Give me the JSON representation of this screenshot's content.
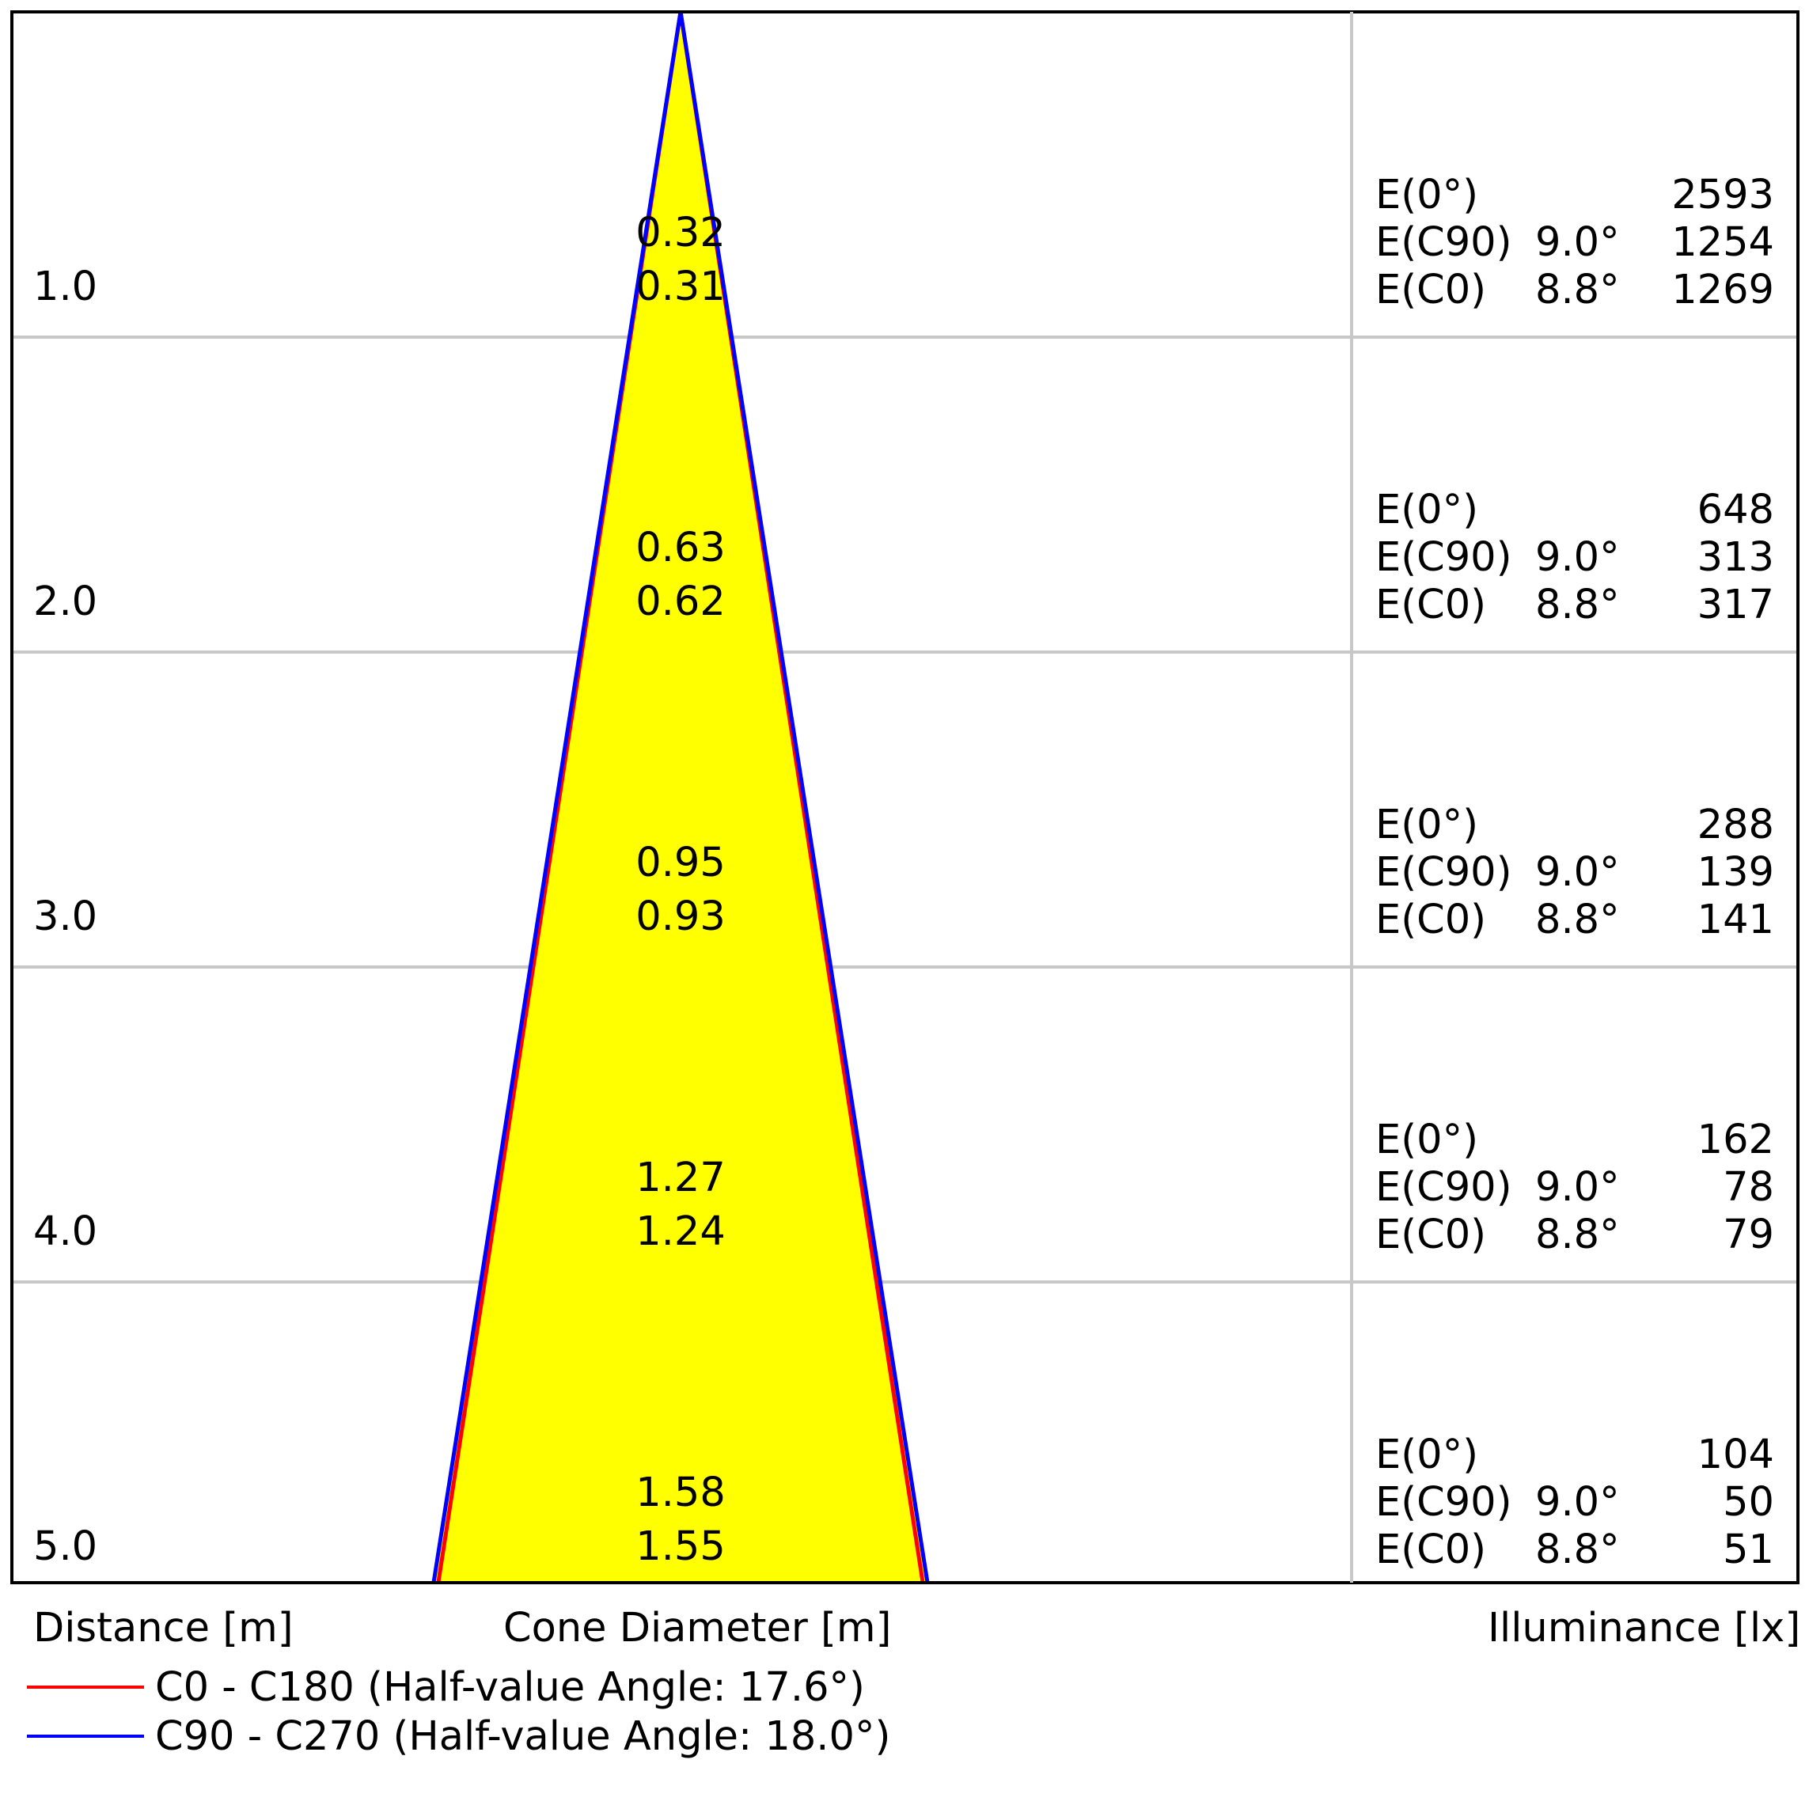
{
  "chart_data": {
    "type": "cone_diagram",
    "colors": {
      "cone_fill": "#ffff00",
      "c0_line": "#ff0000",
      "c90_line": "#0000ff",
      "grid": "#c8c8c8",
      "frame": "#000000"
    },
    "distances": [
      "1.0",
      "2.0",
      "3.0",
      "4.0",
      "5.0"
    ],
    "rows": [
      {
        "distance": "1.0",
        "diameter_c90": "0.32",
        "diameter_c0": "0.31",
        "e0_label": "E(0°)",
        "e0_value": "2593",
        "ec90_label": "E(C90)",
        "ec90_angle": "9.0°",
        "ec90_value": "1254",
        "ec0_label": "E(C0)",
        "ec0_angle": "8.8°",
        "ec0_value": "1269"
      },
      {
        "distance": "2.0",
        "diameter_c90": "0.63",
        "diameter_c0": "0.62",
        "e0_label": "E(0°)",
        "e0_value": "648",
        "ec90_label": "E(C90)",
        "ec90_angle": "9.0°",
        "ec90_value": "313",
        "ec0_label": "E(C0)",
        "ec0_angle": "8.8°",
        "ec0_value": "317"
      },
      {
        "distance": "3.0",
        "diameter_c90": "0.95",
        "diameter_c0": "0.93",
        "e0_label": "E(0°)",
        "e0_value": "288",
        "ec90_label": "E(C90)",
        "ec90_angle": "9.0°",
        "ec90_value": "139",
        "ec0_label": "E(C0)",
        "ec0_angle": "8.8°",
        "ec0_value": "141"
      },
      {
        "distance": "4.0",
        "diameter_c90": "1.27",
        "diameter_c0": "1.24",
        "e0_label": "E(0°)",
        "e0_value": "162",
        "ec90_label": "E(C90)",
        "ec90_angle": "9.0°",
        "ec90_value": "78",
        "ec0_label": "E(C0)",
        "ec0_angle": "8.8°",
        "ec0_value": "79"
      },
      {
        "distance": "5.0",
        "diameter_c90": "1.58",
        "diameter_c0": "1.55",
        "e0_label": "E(0°)",
        "e0_value": "104",
        "ec90_label": "E(C90)",
        "ec90_angle": "9.0°",
        "ec90_value": "50",
        "ec0_label": "E(C0)",
        "ec0_angle": "8.8°",
        "ec0_value": "51"
      }
    ],
    "series": [
      {
        "name": "C0 - C180 (Half-value Angle: 17.6°)",
        "half_angle_deg": 17.6,
        "diameter_at_max_distance": 1.55,
        "color": "#ff0000"
      },
      {
        "name": "C90 - C270 (Half-value Angle: 18.0°)",
        "half_angle_deg": 18.0,
        "diameter_at_max_distance": 1.58,
        "color": "#0000ff"
      }
    ],
    "max_distance": 5.0,
    "axis_labels": {
      "distance": "Distance [m]",
      "cone_diameter": "Cone Diameter [m]",
      "illuminance": "Illuminance [lx]"
    }
  },
  "legend": {
    "c0": "C0 - C180 (Half-value Angle: 17.6°)",
    "c90": "C90 - C270 (Half-value Angle: 18.0°)"
  }
}
